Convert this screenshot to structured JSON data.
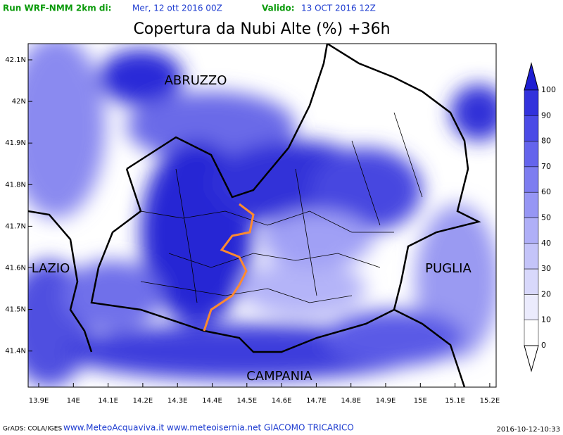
{
  "header": {
    "run_label": "Run WRF-NMM 2km di:",
    "run_date": "Mer, 12 ott 2016 00Z",
    "valid_label": "Valido:",
    "valid_date": "13 OCT 2016 12Z",
    "title": "Copertura da Nubi Alte (%) +36h"
  },
  "map": {
    "lat_labels": [
      "42.1N",
      "42N",
      "41.9N",
      "41.8N",
      "41.7N",
      "41.6N",
      "41.5N",
      "41.4N"
    ],
    "lon_labels": [
      "13.9E",
      "14E",
      "14.1E",
      "14.2E",
      "14.3E",
      "14.4E",
      "14.5E",
      "14.6E",
      "14.7E",
      "14.8E",
      "14.9E",
      "15E",
      "15.1E",
      "15.2E"
    ],
    "regions": [
      "ABRUZZO",
      "LAZIO",
      "PUGLIA",
      "CAMPANIA"
    ]
  },
  "colorbar": {
    "labels": [
      100,
      90,
      80,
      70,
      60,
      50,
      40,
      30,
      20,
      10,
      0
    ]
  },
  "footer": {
    "software": "GrADS: COLA/IGES",
    "credits": "www.MeteoAcquaviva.it www.meteoisernia.net GIACOMO TRICARICO",
    "timestamp": "2016-10-12-10:33"
  }
}
